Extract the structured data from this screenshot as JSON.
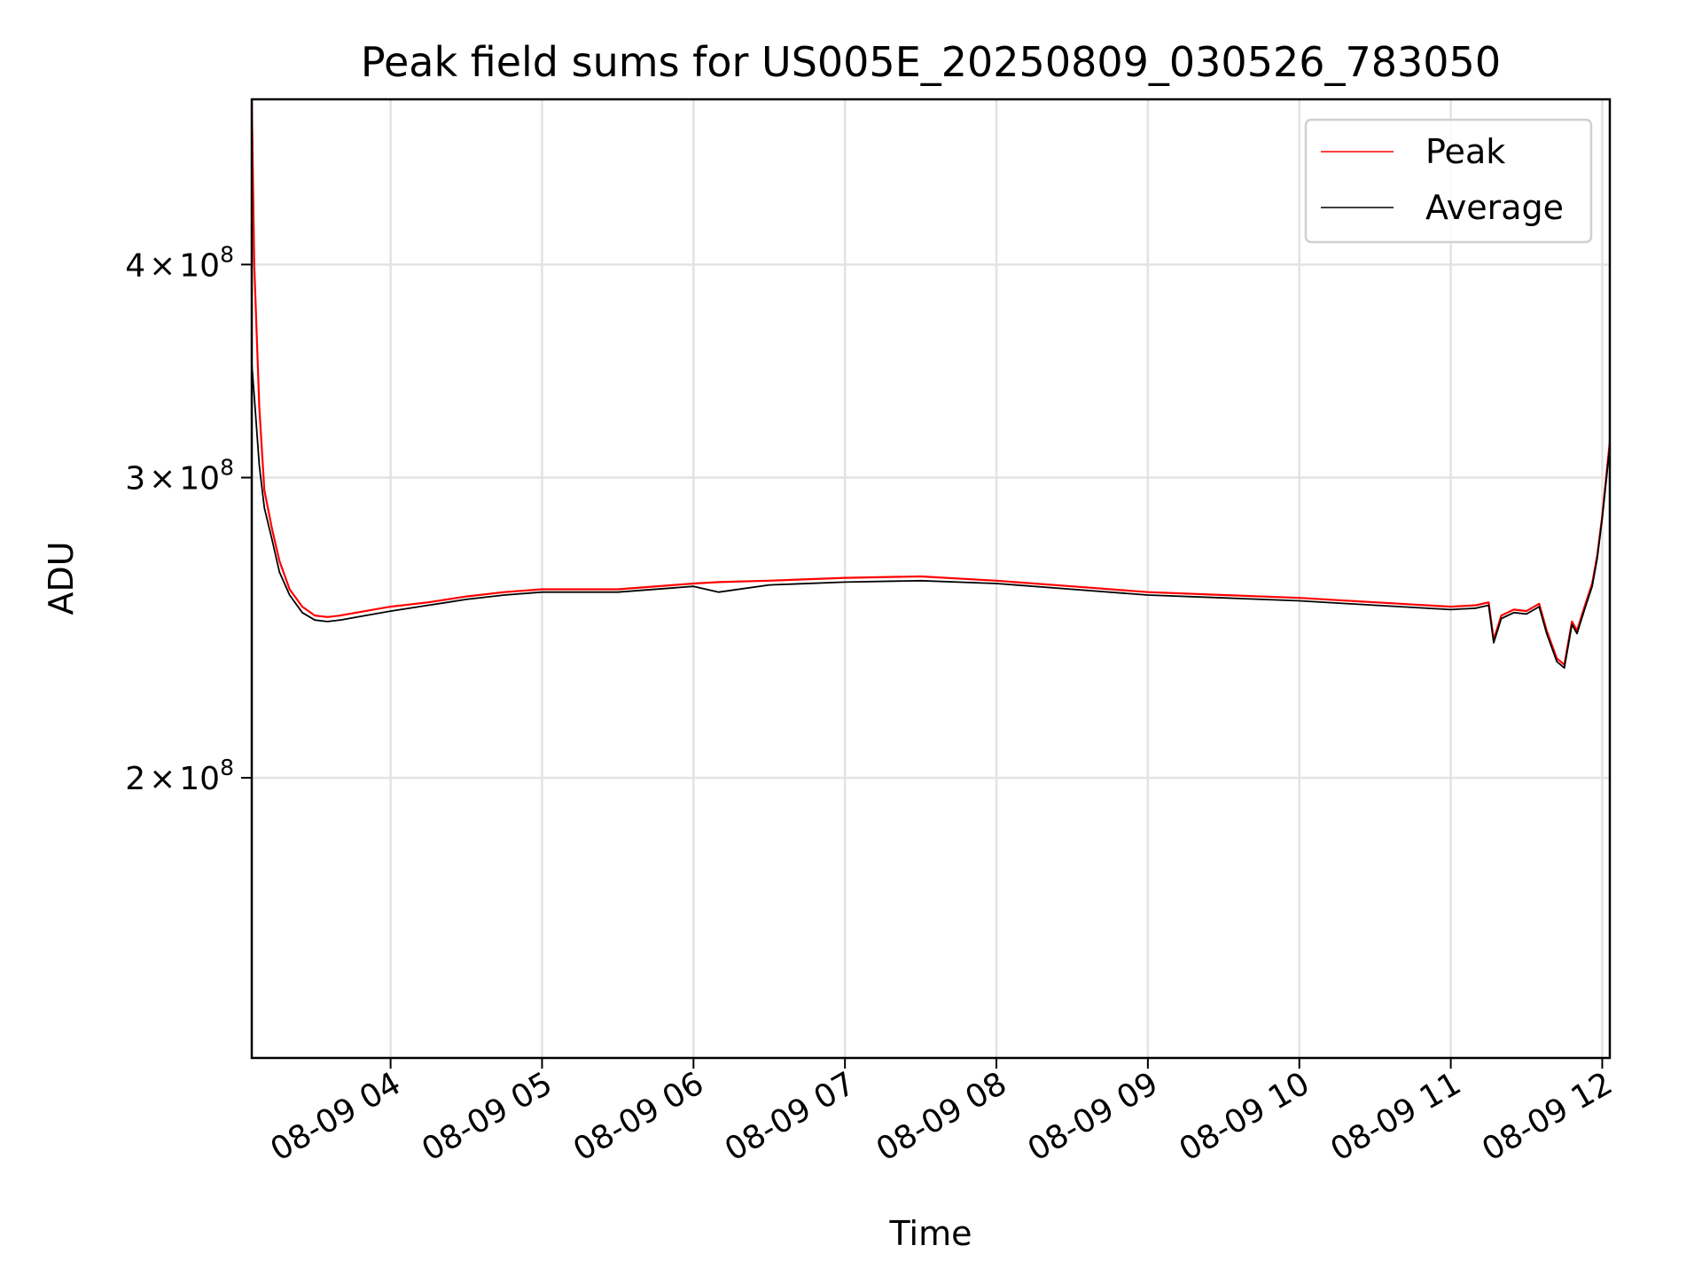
{
  "chart_data": {
    "type": "line",
    "title": "Peak field sums for US005E_20250809_030526_783050",
    "xlabel": "Time",
    "ylabel": "ADU",
    "y_scale": "log",
    "ylim": [
      137000000,
      500000000
    ],
    "xlim": [
      "2025-08-09 03:05",
      "2025-08-09 12:03"
    ],
    "grid": true,
    "legend_position": "top-right",
    "x_ticks": [
      {
        "value": "2025-08-09 04:00",
        "label": "08-09 04"
      },
      {
        "value": "2025-08-09 05:00",
        "label": "08-09 05"
      },
      {
        "value": "2025-08-09 06:00",
        "label": "08-09 06"
      },
      {
        "value": "2025-08-09 07:00",
        "label": "08-09 07"
      },
      {
        "value": "2025-08-09 08:00",
        "label": "08-09 08"
      },
      {
        "value": "2025-08-09 09:00",
        "label": "08-09 09"
      },
      {
        "value": "2025-08-09 10:00",
        "label": "08-09 10"
      },
      {
        "value": "2025-08-09 11:00",
        "label": "08-09 11"
      },
      {
        "value": "2025-08-09 12:00",
        "label": "08-09 12"
      }
    ],
    "y_ticks": [
      {
        "value": 200000000,
        "mantissa": "2",
        "times": "×",
        "base": "10",
        "exponent": "8"
      },
      {
        "value": 300000000,
        "mantissa": "3",
        "times": "×",
        "base": "10",
        "exponent": "8"
      },
      {
        "value": 400000000,
        "mantissa": "4",
        "times": "×",
        "base": "10",
        "exponent": "8"
      }
    ],
    "series": [
      {
        "name": "Peak",
        "color": "#ff0000",
        "x": [
          "2025-08-09 03:05",
          "2025-08-09 03:06",
          "2025-08-09 03:08",
          "2025-08-09 03:10",
          "2025-08-09 03:13",
          "2025-08-09 03:16",
          "2025-08-09 03:20",
          "2025-08-09 03:25",
          "2025-08-09 03:30",
          "2025-08-09 03:35",
          "2025-08-09 03:40",
          "2025-08-09 03:50",
          "2025-08-09 04:00",
          "2025-08-09 04:15",
          "2025-08-09 04:30",
          "2025-08-09 04:45",
          "2025-08-09 05:00",
          "2025-08-09 05:30",
          "2025-08-09 06:00",
          "2025-08-09 06:10",
          "2025-08-09 06:30",
          "2025-08-09 07:00",
          "2025-08-09 07:30",
          "2025-08-09 08:00",
          "2025-08-09 08:30",
          "2025-08-09 09:00",
          "2025-08-09 09:30",
          "2025-08-09 10:00",
          "2025-08-09 10:30",
          "2025-08-09 11:00",
          "2025-08-09 11:10",
          "2025-08-09 11:15",
          "2025-08-09 11:17",
          "2025-08-09 11:20",
          "2025-08-09 11:25",
          "2025-08-09 11:30",
          "2025-08-09 11:35",
          "2025-08-09 11:38",
          "2025-08-09 11:42",
          "2025-08-09 11:45",
          "2025-08-09 11:48",
          "2025-08-09 11:50",
          "2025-08-09 11:53",
          "2025-08-09 11:56",
          "2025-08-09 11:58",
          "2025-08-09 12:00",
          "2025-08-09 12:03"
        ],
        "values": [
          500000000,
          400000000,
          330000000,
          295000000,
          280000000,
          268000000,
          258000000,
          252000000,
          249000000,
          248500000,
          249000000,
          250500000,
          252000000,
          253500000,
          255500000,
          257000000,
          258000000,
          258000000,
          260000000,
          260500000,
          261000000,
          262000000,
          262500000,
          261000000,
          259000000,
          257000000,
          256000000,
          255000000,
          253500000,
          252000000,
          252500000,
          253500000,
          241000000,
          249000000,
          251000000,
          250500000,
          253000000,
          244000000,
          235000000,
          233000000,
          247000000,
          244000000,
          252000000,
          260000000,
          270000000,
          285000000,
          315000000
        ]
      },
      {
        "name": "Average",
        "color": "#000000",
        "x": [
          "2025-08-09 03:05",
          "2025-08-09 03:06",
          "2025-08-09 03:08",
          "2025-08-09 03:10",
          "2025-08-09 03:13",
          "2025-08-09 03:16",
          "2025-08-09 03:20",
          "2025-08-09 03:25",
          "2025-08-09 03:30",
          "2025-08-09 03:35",
          "2025-08-09 03:40",
          "2025-08-09 03:50",
          "2025-08-09 04:00",
          "2025-08-09 04:15",
          "2025-08-09 04:30",
          "2025-08-09 04:45",
          "2025-08-09 05:00",
          "2025-08-09 05:30",
          "2025-08-09 06:00",
          "2025-08-09 06:10",
          "2025-08-09 06:30",
          "2025-08-09 07:00",
          "2025-08-09 07:30",
          "2025-08-09 08:00",
          "2025-08-09 08:30",
          "2025-08-09 09:00",
          "2025-08-09 09:30",
          "2025-08-09 10:00",
          "2025-08-09 10:30",
          "2025-08-09 11:00",
          "2025-08-09 11:10",
          "2025-08-09 11:15",
          "2025-08-09 11:17",
          "2025-08-09 11:20",
          "2025-08-09 11:25",
          "2025-08-09 11:30",
          "2025-08-09 11:35",
          "2025-08-09 11:38",
          "2025-08-09 11:42",
          "2025-08-09 11:45",
          "2025-08-09 11:48",
          "2025-08-09 11:50",
          "2025-08-09 11:53",
          "2025-08-09 11:56",
          "2025-08-09 11:58",
          "2025-08-09 12:00",
          "2025-08-09 12:03"
        ],
        "values": [
          350000000,
          335000000,
          305000000,
          288000000,
          276000000,
          264000000,
          256000000,
          250000000,
          247500000,
          247000000,
          247500000,
          249000000,
          250500000,
          252500000,
          254500000,
          256000000,
          257000000,
          257000000,
          259000000,
          257000000,
          259500000,
          260500000,
          261000000,
          260000000,
          258000000,
          256000000,
          255000000,
          254000000,
          252500000,
          251000000,
          251500000,
          252500000,
          240000000,
          248000000,
          250000000,
          249500000,
          252000000,
          243000000,
          234000000,
          232000000,
          246000000,
          243000000,
          251000000,
          259000000,
          269000000,
          284000000,
          313000000
        ]
      }
    ]
  }
}
